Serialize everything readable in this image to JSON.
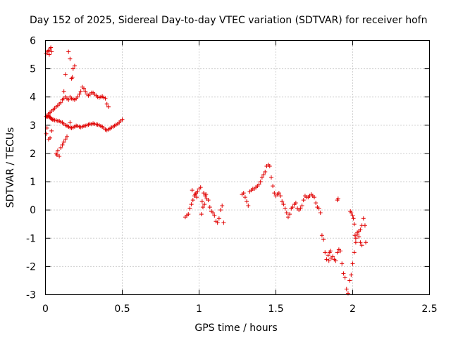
{
  "chart_data": {
    "type": "scatter",
    "title": "Day 152 of 2025, Sidereal Day-to-day VTEC variation (SDTVAR) for receiver hofn",
    "xlabel": "GPS time / hours",
    "ylabel": "SDTVAR / TECUs",
    "xlim": [
      0,
      2.5
    ],
    "ylim": [
      -3,
      6
    ],
    "xticks": [
      0,
      0.5,
      1,
      1.5,
      2,
      2.5
    ],
    "xtick_labels": [
      "0",
      "0.5",
      "1",
      "1.5",
      "2",
      "2.5"
    ],
    "yticks": [
      -3,
      -2,
      -1,
      0,
      1,
      2,
      3,
      4,
      5,
      6
    ],
    "ytick_labels": [
      "-3",
      "-2",
      "-1",
      "0",
      "1",
      "2",
      "3",
      "4",
      "5",
      "6"
    ],
    "grid": true,
    "marker": "+",
    "marker_color": "#e00000",
    "series": [
      {
        "name": "hofn",
        "points": [
          [
            0.005,
            5.55
          ],
          [
            0.015,
            5.6
          ],
          [
            0.02,
            5.65
          ],
          [
            0.025,
            5.5
          ],
          [
            0.03,
            5.7
          ],
          [
            0.035,
            5.75
          ],
          [
            0.04,
            5.6
          ],
          [
            0.005,
            2.7
          ],
          [
            0.01,
            2.9
          ],
          [
            0.02,
            2.5
          ],
          [
            0.03,
            2.55
          ],
          [
            0.04,
            2.8
          ],
          [
            0.005,
            3.3
          ],
          [
            0.01,
            3.32
          ],
          [
            0.015,
            3.3
          ],
          [
            0.02,
            3.35
          ],
          [
            0.025,
            3.3
          ],
          [
            0.03,
            3.28
          ],
          [
            0.035,
            3.25
          ],
          [
            0.04,
            3.22
          ],
          [
            0.045,
            3.2
          ],
          [
            0.05,
            3.2
          ],
          [
            0.06,
            3.18
          ],
          [
            0.07,
            3.17
          ],
          [
            0.08,
            3.15
          ],
          [
            0.09,
            3.15
          ],
          [
            0.1,
            3.12
          ],
          [
            0.11,
            3.1
          ],
          [
            0.12,
            3.05
          ],
          [
            0.13,
            3.0
          ],
          [
            0.14,
            2.98
          ],
          [
            0.15,
            2.95
          ],
          [
            0.16,
            2.92
          ],
          [
            0.17,
            2.9
          ],
          [
            0.18,
            2.92
          ],
          [
            0.19,
            2.95
          ],
          [
            0.2,
            2.98
          ],
          [
            0.21,
            2.97
          ],
          [
            0.22,
            2.95
          ],
          [
            0.23,
            2.93
          ],
          [
            0.24,
            2.95
          ],
          [
            0.25,
            2.97
          ],
          [
            0.26,
            2.98
          ],
          [
            0.27,
            3.0
          ],
          [
            0.28,
            3.02
          ],
          [
            0.29,
            3.05
          ],
          [
            0.3,
            3.04
          ],
          [
            0.31,
            3.06
          ],
          [
            0.32,
            3.05
          ],
          [
            0.33,
            3.03
          ],
          [
            0.34,
            3.02
          ],
          [
            0.35,
            3.0
          ],
          [
            0.36,
            2.97
          ],
          [
            0.37,
            2.95
          ],
          [
            0.38,
            2.9
          ],
          [
            0.39,
            2.85
          ],
          [
            0.4,
            2.82
          ],
          [
            0.41,
            2.85
          ],
          [
            0.42,
            2.88
          ],
          [
            0.43,
            2.92
          ],
          [
            0.44,
            2.95
          ],
          [
            0.45,
            2.98
          ],
          [
            0.46,
            3.02
          ],
          [
            0.47,
            3.05
          ],
          [
            0.48,
            3.1
          ],
          [
            0.49,
            3.15
          ],
          [
            0.5,
            3.2
          ],
          [
            0.02,
            3.4
          ],
          [
            0.03,
            3.45
          ],
          [
            0.04,
            3.5
          ],
          [
            0.05,
            3.55
          ],
          [
            0.06,
            3.6
          ],
          [
            0.07,
            3.65
          ],
          [
            0.08,
            3.7
          ],
          [
            0.09,
            3.75
          ],
          [
            0.1,
            3.8
          ],
          [
            0.11,
            3.9
          ],
          [
            0.12,
            3.95
          ],
          [
            0.13,
            4.0
          ],
          [
            0.14,
            3.95
          ],
          [
            0.15,
            3.9
          ],
          [
            0.16,
            4.0
          ],
          [
            0.17,
            3.95
          ],
          [
            0.18,
            3.92
          ],
          [
            0.19,
            3.9
          ],
          [
            0.2,
            3.95
          ],
          [
            0.21,
            4.0
          ],
          [
            0.22,
            4.1
          ],
          [
            0.23,
            4.2
          ],
          [
            0.24,
            4.35
          ],
          [
            0.25,
            4.3
          ],
          [
            0.26,
            4.2
          ],
          [
            0.27,
            4.1
          ],
          [
            0.28,
            4.05
          ],
          [
            0.29,
            4.1
          ],
          [
            0.3,
            4.15
          ],
          [
            0.31,
            4.15
          ],
          [
            0.32,
            4.1
          ],
          [
            0.33,
            4.05
          ],
          [
            0.34,
            4.0
          ],
          [
            0.35,
            3.98
          ],
          [
            0.36,
            4.0
          ],
          [
            0.37,
            4.02
          ],
          [
            0.38,
            3.98
          ],
          [
            0.39,
            3.95
          ],
          [
            0.4,
            3.75
          ],
          [
            0.41,
            3.65
          ],
          [
            0.07,
            2.0
          ],
          [
            0.075,
            1.95
          ],
          [
            0.08,
            2.1
          ],
          [
            0.09,
            1.9
          ],
          [
            0.1,
            2.2
          ],
          [
            0.11,
            2.3
          ],
          [
            0.12,
            2.4
          ],
          [
            0.13,
            2.5
          ],
          [
            0.14,
            2.6
          ],
          [
            0.15,
            2.95
          ],
          [
            0.16,
            3.1
          ],
          [
            0.12,
            4.2
          ],
          [
            0.13,
            4.8
          ],
          [
            0.15,
            5.6
          ],
          [
            0.16,
            5.35
          ],
          [
            0.17,
            4.65
          ],
          [
            0.175,
            4.7
          ],
          [
            0.18,
            5.0
          ],
          [
            0.19,
            5.1
          ],
          [
            0.91,
            -0.25
          ],
          [
            0.92,
            -0.2
          ],
          [
            0.93,
            -0.15
          ],
          [
            0.94,
            0.05
          ],
          [
            0.95,
            0.2
          ],
          [
            0.96,
            0.35
          ],
          [
            0.97,
            0.5
          ],
          [
            0.98,
            0.6
          ],
          [
            0.99,
            0.65
          ],
          [
            1.0,
            0.75
          ],
          [
            1.01,
            0.8
          ],
          [
            1.02,
            0.3
          ],
          [
            1.03,
            0.6
          ],
          [
            1.04,
            0.5
          ],
          [
            1.05,
            0.4
          ],
          [
            1.06,
            0.35
          ],
          [
            1.07,
            0.1
          ],
          [
            1.08,
            -0.05
          ],
          [
            1.09,
            -0.1
          ],
          [
            1.1,
            -0.2
          ],
          [
            1.11,
            -0.4
          ],
          [
            1.12,
            -0.45
          ],
          [
            1.13,
            -0.3
          ],
          [
            1.14,
            0.0
          ],
          [
            1.15,
            0.15
          ],
          [
            1.16,
            -0.45
          ],
          [
            0.955,
            0.7
          ],
          [
            0.975,
            0.55
          ],
          [
            0.985,
            0.45
          ],
          [
            1.015,
            -0.15
          ],
          [
            1.025,
            0.1
          ],
          [
            1.035,
            0.2
          ],
          [
            1.045,
            0.55
          ],
          [
            1.28,
            0.55
          ],
          [
            1.29,
            0.6
          ],
          [
            1.3,
            0.45
          ],
          [
            1.31,
            0.3
          ],
          [
            1.32,
            0.15
          ],
          [
            1.33,
            0.65
          ],
          [
            1.34,
            0.7
          ],
          [
            1.35,
            0.75
          ],
          [
            1.36,
            0.75
          ],
          [
            1.37,
            0.8
          ],
          [
            1.38,
            0.85
          ],
          [
            1.39,
            0.9
          ],
          [
            1.4,
            1.0
          ],
          [
            1.41,
            1.15
          ],
          [
            1.42,
            1.25
          ],
          [
            1.43,
            1.35
          ],
          [
            1.44,
            1.55
          ],
          [
            1.45,
            1.6
          ],
          [
            1.46,
            1.55
          ],
          [
            1.47,
            1.15
          ],
          [
            1.48,
            0.85
          ],
          [
            1.49,
            0.6
          ],
          [
            1.5,
            0.5
          ],
          [
            1.51,
            0.55
          ],
          [
            1.52,
            0.6
          ],
          [
            1.53,
            0.5
          ],
          [
            1.54,
            0.3
          ],
          [
            1.55,
            0.2
          ],
          [
            1.56,
            0.05
          ],
          [
            1.57,
            -0.1
          ],
          [
            1.58,
            -0.25
          ],
          [
            1.59,
            -0.15
          ],
          [
            1.6,
            0.05
          ],
          [
            1.61,
            0.1
          ],
          [
            1.62,
            0.2
          ],
          [
            1.63,
            0.25
          ],
          [
            1.64,
            0.05
          ],
          [
            1.65,
            0.0
          ],
          [
            1.66,
            0.05
          ],
          [
            1.67,
            0.15
          ],
          [
            1.68,
            0.35
          ],
          [
            1.69,
            0.5
          ],
          [
            1.7,
            0.45
          ],
          [
            1.71,
            0.45
          ],
          [
            1.72,
            0.5
          ],
          [
            1.73,
            0.55
          ],
          [
            1.74,
            0.5
          ],
          [
            1.75,
            0.45
          ],
          [
            1.76,
            0.25
          ],
          [
            1.77,
            0.1
          ],
          [
            1.78,
            0.05
          ],
          [
            1.79,
            -0.1
          ],
          [
            1.8,
            -0.9
          ],
          [
            1.81,
            -1.05
          ],
          [
            1.82,
            -1.5
          ],
          [
            1.83,
            -1.75
          ],
          [
            1.84,
            -1.6
          ],
          [
            1.85,
            -1.5
          ],
          [
            1.86,
            -1.7
          ],
          [
            1.87,
            -1.65
          ],
          [
            1.88,
            -1.75
          ],
          [
            1.89,
            -1.8
          ],
          [
            1.9,
            -1.5
          ],
          [
            1.91,
            -1.4
          ],
          [
            1.92,
            -1.45
          ],
          [
            1.93,
            -1.9
          ],
          [
            1.94,
            -2.25
          ],
          [
            1.95,
            -2.4
          ],
          [
            1.96,
            -2.8
          ],
          [
            1.97,
            -2.95
          ],
          [
            1.98,
            -2.5
          ],
          [
            1.99,
            -2.3
          ],
          [
            2.0,
            -1.9
          ],
          [
            2.01,
            -1.5
          ],
          [
            2.02,
            -1.15
          ],
          [
            2.03,
            -0.8
          ],
          [
            2.04,
            -0.75
          ],
          [
            2.05,
            -0.7
          ],
          [
            2.06,
            -0.55
          ],
          [
            2.07,
            -0.3
          ],
          [
            2.08,
            -0.55
          ],
          [
            2.085,
            -1.15
          ],
          [
            1.985,
            -0.05
          ],
          [
            1.99,
            -0.1
          ],
          [
            2.0,
            -0.2
          ],
          [
            2.005,
            -0.3
          ],
          [
            2.01,
            -0.5
          ],
          [
            2.015,
            -0.9
          ],
          [
            2.02,
            -1.0
          ],
          [
            2.03,
            -0.85
          ],
          [
            2.04,
            -0.95
          ],
          [
            2.05,
            -1.15
          ],
          [
            2.06,
            -1.25
          ],
          [
            1.9,
            0.35
          ],
          [
            1.905,
            0.4
          ],
          [
            1.845,
            -1.8
          ],
          [
            1.855,
            -1.45
          ]
        ]
      }
    ]
  }
}
